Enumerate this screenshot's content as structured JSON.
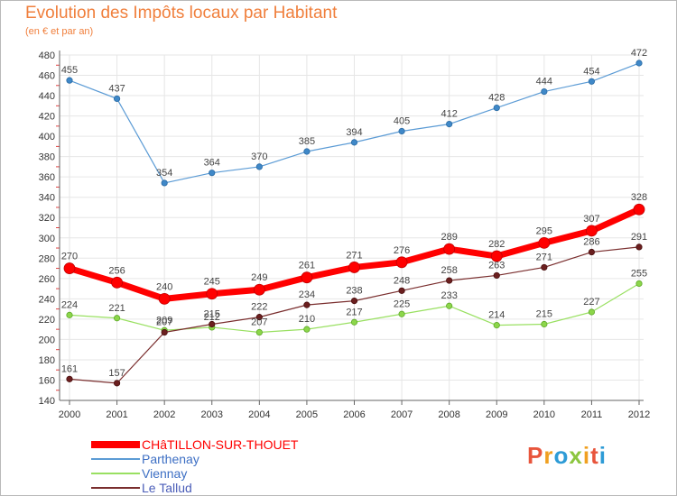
{
  "title": "Evolution des Impôts locaux par Habitant",
  "subtitle": "(en € et par an)",
  "logo": {
    "text": "Proxiti",
    "colors": [
      "#e8553c",
      "#f0a020",
      "#2d9bd6",
      "#8cc63f",
      "#f0a020",
      "#e8553c",
      "#2d9bd6"
    ]
  },
  "chart_data": {
    "type": "line",
    "title": "Evolution des Impôts locaux par Habitant",
    "subtitle": "(en € et par an)",
    "xlabel": "",
    "ylabel": "",
    "x": [
      "2000",
      "2001",
      "2002",
      "2003",
      "2004",
      "2005",
      "2006",
      "2007",
      "2008",
      "2009",
      "2010",
      "2011",
      "2012"
    ],
    "ylim": [
      140,
      480
    ],
    "yticks": [
      140,
      160,
      180,
      200,
      220,
      240,
      260,
      280,
      300,
      320,
      340,
      360,
      380,
      400,
      420,
      440,
      460,
      480
    ],
    "grid": true,
    "legend_position": "bottom-left",
    "series": [
      {
        "name": "CHâTILLON-SUR-THOUET",
        "color": "#ff0000",
        "values": [
          270,
          256,
          240,
          245,
          249,
          261,
          271,
          276,
          289,
          282,
          295,
          307,
          328
        ]
      },
      {
        "name": "Parthenay",
        "color": "#5b9bd5",
        "values": [
          455,
          437,
          354,
          364,
          370,
          385,
          394,
          405,
          412,
          428,
          444,
          454,
          472
        ]
      },
      {
        "name": "Viennay",
        "color": "#99e061",
        "values": [
          224,
          221,
          209,
          212,
          207,
          210,
          217,
          225,
          233,
          214,
          215,
          227,
          255
        ]
      },
      {
        "name": "Le Tallud",
        "color": "#7a2e2e",
        "values": [
          161,
          157,
          207,
          215,
          222,
          234,
          238,
          248,
          258,
          263,
          271,
          286,
          291
        ]
      }
    ]
  }
}
